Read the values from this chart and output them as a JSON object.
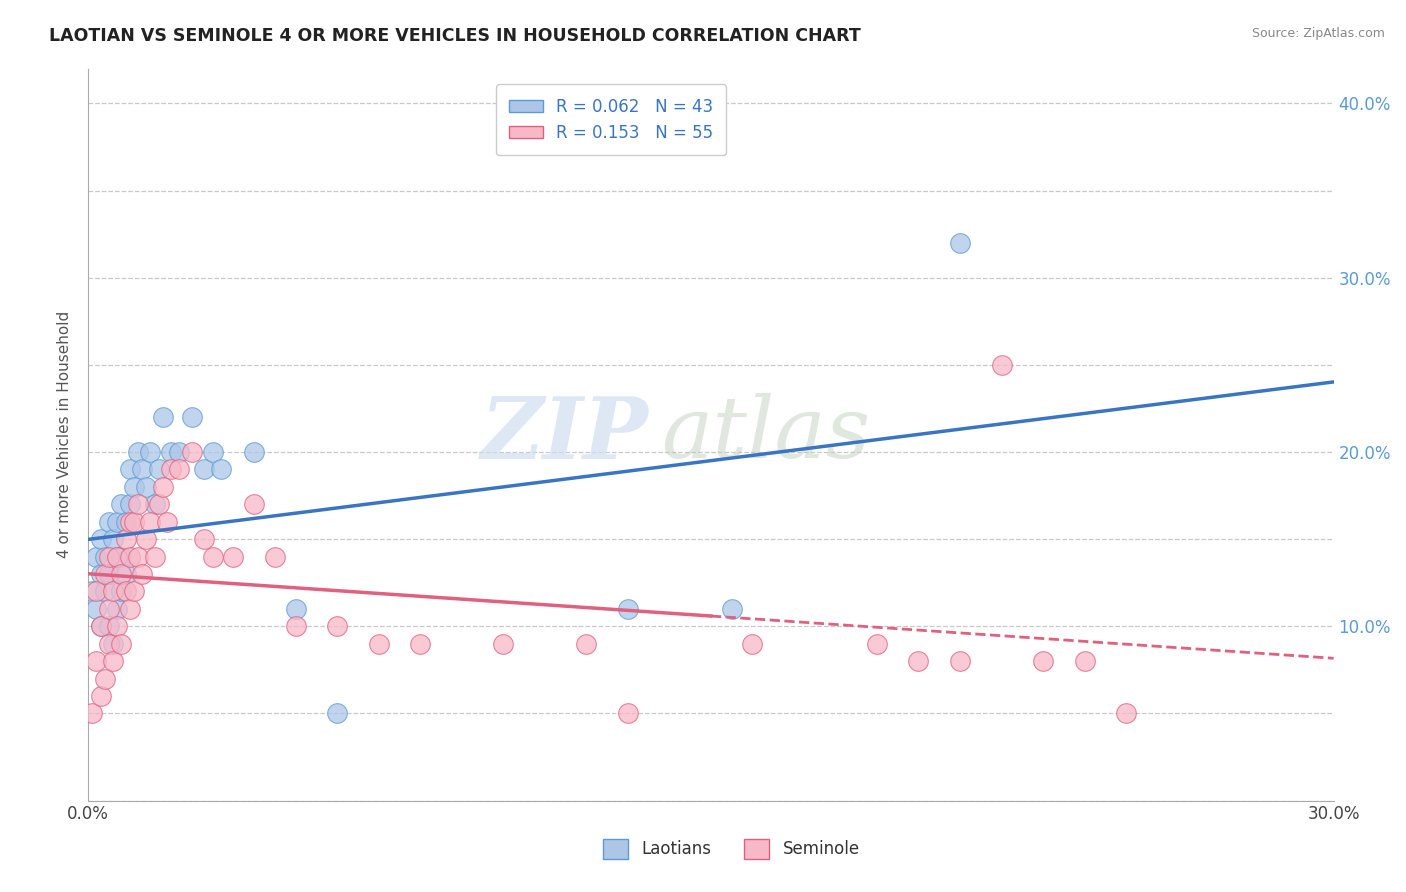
{
  "title": "LAOTIAN VS SEMINOLE 4 OR MORE VEHICLES IN HOUSEHOLD CORRELATION CHART",
  "source": "Source: ZipAtlas.com",
  "ylabel": "4 or more Vehicles in Household",
  "xlabel": "",
  "xlim": [
    0.0,
    0.3
  ],
  "ylim": [
    0.0,
    0.42
  ],
  "xtick_vals": [
    0.0,
    0.05,
    0.1,
    0.15,
    0.2,
    0.25,
    0.3
  ],
  "xtick_labels": [
    "0.0%",
    "",
    "",
    "",
    "",
    "",
    "30.0%"
  ],
  "ytick_vals": [
    0.0,
    0.05,
    0.1,
    0.15,
    0.2,
    0.25,
    0.3,
    0.35,
    0.4
  ],
  "ytick_labels": [
    "",
    "",
    "10.0%",
    "",
    "20.0%",
    "",
    "30.0%",
    "",
    "40.0%"
  ],
  "laotian_color": "#adc6e8",
  "laotian_edge": "#5b9bd5",
  "seminole_color": "#f7b8c8",
  "seminole_edge": "#e06080",
  "trendline_laotian_color": "#3a75c4",
  "trendline_seminole_color": "#e06080",
  "background_color": "#ffffff",
  "watermark_zip": "ZIP",
  "watermark_atlas": "atlas",
  "laotian_R": 0.062,
  "laotian_N": 43,
  "seminole_R": 0.153,
  "seminole_N": 55,
  "laotian_x": [
    0.001,
    0.002,
    0.002,
    0.003,
    0.003,
    0.003,
    0.004,
    0.004,
    0.005,
    0.005,
    0.005,
    0.006,
    0.006,
    0.007,
    0.007,
    0.007,
    0.008,
    0.008,
    0.008,
    0.009,
    0.009,
    0.01,
    0.01,
    0.011,
    0.012,
    0.013,
    0.014,
    0.015,
    0.016,
    0.017,
    0.018,
    0.02,
    0.022,
    0.025,
    0.028,
    0.03,
    0.032,
    0.04,
    0.05,
    0.06,
    0.13,
    0.155,
    0.21
  ],
  "laotian_y": [
    0.12,
    0.11,
    0.14,
    0.1,
    0.13,
    0.15,
    0.12,
    0.14,
    0.1,
    0.13,
    0.16,
    0.09,
    0.15,
    0.11,
    0.14,
    0.16,
    0.12,
    0.14,
    0.17,
    0.13,
    0.16,
    0.17,
    0.19,
    0.18,
    0.2,
    0.19,
    0.18,
    0.2,
    0.17,
    0.19,
    0.22,
    0.2,
    0.2,
    0.22,
    0.19,
    0.2,
    0.19,
    0.2,
    0.11,
    0.05,
    0.11,
    0.11,
    0.32
  ],
  "seminole_x": [
    0.001,
    0.002,
    0.002,
    0.003,
    0.003,
    0.004,
    0.004,
    0.005,
    0.005,
    0.005,
    0.006,
    0.006,
    0.007,
    0.007,
    0.008,
    0.008,
    0.009,
    0.009,
    0.01,
    0.01,
    0.01,
    0.011,
    0.011,
    0.012,
    0.012,
    0.013,
    0.014,
    0.015,
    0.016,
    0.017,
    0.018,
    0.019,
    0.02,
    0.022,
    0.025,
    0.028,
    0.03,
    0.035,
    0.04,
    0.045,
    0.05,
    0.06,
    0.07,
    0.08,
    0.1,
    0.12,
    0.13,
    0.16,
    0.19,
    0.2,
    0.21,
    0.22,
    0.23,
    0.24,
    0.25
  ],
  "seminole_y": [
    0.05,
    0.08,
    0.12,
    0.06,
    0.1,
    0.07,
    0.13,
    0.09,
    0.11,
    0.14,
    0.08,
    0.12,
    0.1,
    0.14,
    0.09,
    0.13,
    0.12,
    0.15,
    0.11,
    0.14,
    0.16,
    0.12,
    0.16,
    0.14,
    0.17,
    0.13,
    0.15,
    0.16,
    0.14,
    0.17,
    0.18,
    0.16,
    0.19,
    0.19,
    0.2,
    0.15,
    0.14,
    0.14,
    0.17,
    0.14,
    0.1,
    0.1,
    0.09,
    0.09,
    0.09,
    0.09,
    0.05,
    0.09,
    0.09,
    0.08,
    0.08,
    0.25,
    0.08,
    0.08,
    0.05
  ]
}
